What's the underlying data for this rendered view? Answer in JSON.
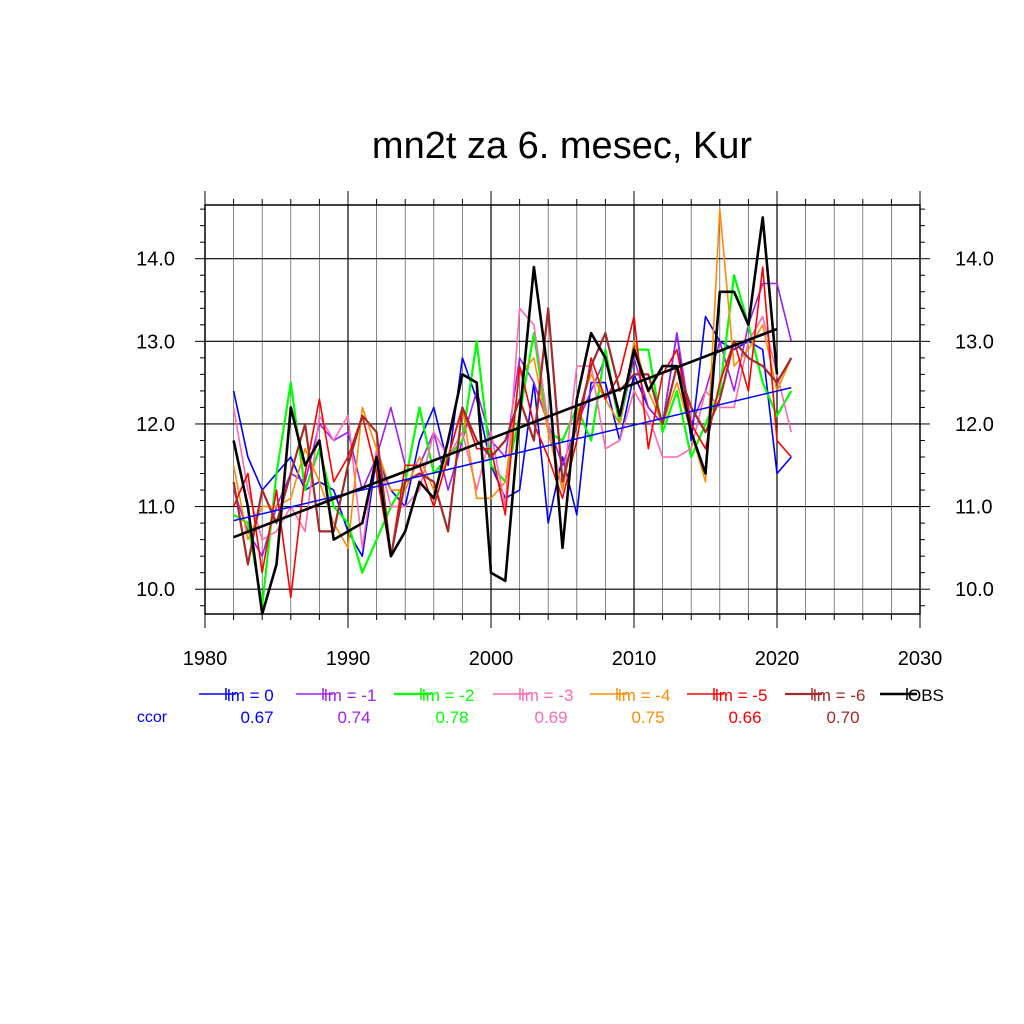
{
  "chart_data": {
    "type": "line",
    "title": "mn2t za 6. mesec, Kur",
    "xlim": [
      1980,
      2030
    ],
    "ylim": [
      9.7,
      14.65
    ],
    "x_ticks": [
      1980,
      1990,
      2000,
      2010,
      2020,
      2030
    ],
    "x_tick_labels": [
      "1980",
      "1990",
      "2000",
      "2010",
      "2020",
      "2030"
    ],
    "y_ticks": [
      10.0,
      11.0,
      12.0,
      13.0,
      14.0
    ],
    "y_tick_labels": [
      "10.0",
      "11.0",
      "12.0",
      "13.0",
      "14.0"
    ],
    "grid": true,
    "legend_position": "bottom",
    "ccor_label": "ccor",
    "ccor_color": "#0000ff",
    "x": [
      1982,
      1983,
      1984,
      1985,
      1986,
      1987,
      1988,
      1989,
      1990,
      1991,
      1992,
      1993,
      1994,
      1995,
      1996,
      1997,
      1998,
      1999,
      2000,
      2001,
      2002,
      2003,
      2004,
      2005,
      2006,
      2007,
      2008,
      2009,
      2010,
      2011,
      2012,
      2013,
      2014,
      2015,
      2016,
      2017,
      2018,
      2019,
      2020,
      2021
    ],
    "series": [
      {
        "name": "lm = 0",
        "color": "#0000ff",
        "ccor": "0.67",
        "width": 1.6,
        "values": [
          12.4,
          11.6,
          11.2,
          11.4,
          11.6,
          11.2,
          11.3,
          11.2,
          10.7,
          10.4,
          11.6,
          11.2,
          11.0,
          11.8,
          12.2,
          11.5,
          12.8,
          12.3,
          11.5,
          11.1,
          11.2,
          12.5,
          10.8,
          11.6,
          10.9,
          12.5,
          12.5,
          11.8,
          12.6,
          12.2,
          12.0,
          13.1,
          11.8,
          13.3,
          13.0,
          12.9,
          13.0,
          12.9,
          11.4,
          11.6
        ]
      },
      {
        "name": "lm = -1",
        "color": "#a020f0",
        "ccor": "0.74",
        "width": 1.6,
        "values": [
          11.2,
          10.7,
          10.4,
          11.0,
          11.4,
          11.3,
          12.0,
          11.8,
          11.9,
          11.2,
          11.6,
          12.2,
          11.5,
          11.5,
          11.9,
          11.2,
          11.8,
          12.4,
          11.8,
          11.6,
          12.8,
          12.5,
          12.0,
          11.5,
          12.0,
          12.4,
          12.8,
          12.0,
          12.8,
          12.2,
          12.0,
          13.1,
          12.0,
          12.4,
          13.0,
          12.4,
          13.2,
          13.7,
          13.7,
          13.0
        ]
      },
      {
        "name": "lm = -2",
        "color": "#00ff00",
        "ccor": "0.78",
        "width": 2.2,
        "values": [
          10.9,
          10.8,
          9.8,
          11.4,
          12.5,
          11.2,
          11.7,
          11.0,
          10.8,
          10.2,
          10.6,
          11.0,
          11.3,
          12.2,
          11.4,
          11.6,
          11.8,
          13.0,
          11.5,
          11.3,
          12.1,
          13.1,
          11.9,
          11.8,
          12.2,
          11.8,
          12.9,
          12.0,
          12.9,
          12.9,
          11.9,
          12.4,
          11.6,
          12.0,
          12.4,
          13.8,
          13.2,
          12.5,
          12.1,
          12.4
        ]
      },
      {
        "name": "lm = -3",
        "color": "#ff69b4",
        "ccor": "0.69",
        "width": 1.6,
        "values": [
          12.2,
          11.2,
          10.6,
          10.7,
          11.0,
          10.7,
          12.1,
          11.8,
          12.1,
          10.5,
          11.7,
          11.0,
          11.0,
          11.2,
          11.9,
          11.6,
          11.9,
          11.2,
          11.9,
          11.0,
          13.4,
          13.2,
          12.0,
          11.2,
          12.7,
          12.7,
          11.7,
          11.8,
          12.4,
          12.1,
          11.6,
          11.6,
          11.7,
          12.4,
          12.2,
          12.2,
          13.0,
          13.3,
          12.6,
          11.9
        ]
      },
      {
        "name": "lm = -4",
        "color": "#ff8c00",
        "ccor": "0.75",
        "width": 1.6,
        "values": [
          11.5,
          10.6,
          11.0,
          11.0,
          11.1,
          11.7,
          11.3,
          10.8,
          10.5,
          12.2,
          11.7,
          11.2,
          11.2,
          11.6,
          11.2,
          11.6,
          12.2,
          11.1,
          11.1,
          11.3,
          12.6,
          12.8,
          11.9,
          11.2,
          12.1,
          12.6,
          12.3,
          12.0,
          13.0,
          12.4,
          12.0,
          12.5,
          11.9,
          11.3,
          14.6,
          12.7,
          12.9,
          13.2,
          12.4,
          12.8
        ]
      },
      {
        "name": "lm = -5",
        "color": "#ff0000",
        "ccor": "0.66",
        "width": 1.6,
        "values": [
          11.0,
          11.4,
          10.2,
          11.2,
          9.9,
          11.4,
          12.3,
          11.3,
          11.6,
          12.1,
          11.4,
          10.4,
          11.5,
          11.5,
          11.0,
          11.6,
          12.2,
          11.7,
          11.7,
          10.9,
          12.7,
          12.0,
          11.6,
          11.1,
          11.8,
          12.8,
          12.3,
          12.6,
          13.3,
          11.7,
          12.6,
          12.9,
          12.0,
          11.7,
          12.5,
          13.0,
          12.4,
          13.9,
          11.8,
          11.6
        ]
      },
      {
        "name": "lm = -6",
        "color": "#a52a2a",
        "ccor": "0.70",
        "width": 2.2,
        "values": [
          11.3,
          10.3,
          11.2,
          10.8,
          11.4,
          12.0,
          10.7,
          10.7,
          11.5,
          12.1,
          11.9,
          10.4,
          11.3,
          11.4,
          11.3,
          10.7,
          12.2,
          11.8,
          11.6,
          11.8,
          12.3,
          11.8,
          13.4,
          11.3,
          12.0,
          12.7,
          13.1,
          12.4,
          12.6,
          12.6,
          12.0,
          12.7,
          12.2,
          11.9,
          12.3,
          13.0,
          12.8,
          12.7,
          12.5,
          12.8
        ]
      },
      {
        "name": "OBS",
        "color": "#000000",
        "ccor": "",
        "width": 2.6,
        "values": [
          11.8,
          11.0,
          9.7,
          10.3,
          12.2,
          11.5,
          11.8,
          10.6,
          10.7,
          10.8,
          11.6,
          10.4,
          10.7,
          11.3,
          11.1,
          11.8,
          12.6,
          12.5,
          10.2,
          10.1,
          12.1,
          13.9,
          12.6,
          10.5,
          12.3,
          13.1,
          12.8,
          12.1,
          12.9,
          12.4,
          12.7,
          12.7,
          11.9,
          11.4,
          13.6,
          13.6,
          13.2,
          14.5,
          12.6,
          null
        ]
      }
    ],
    "trend_lines": [
      {
        "name": "lm = 0 trend",
        "color": "#0000ff",
        "width": 1.5,
        "x": [
          1982,
          2021
        ],
        "y": [
          10.83,
          12.44
        ]
      },
      {
        "name": "OBS trend",
        "color": "#000000",
        "width": 2.6,
        "x": [
          1982,
          2020
        ],
        "y": [
          10.63,
          13.15
        ]
      }
    ]
  }
}
